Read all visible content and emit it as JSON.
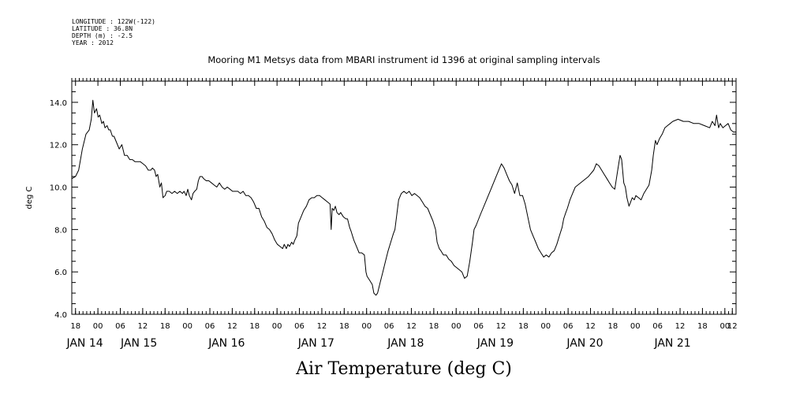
{
  "header": {
    "lines": [
      "LONGITUDE : 122W(-122)",
      "LATITUDE : 36.8N",
      "DEPTH (m) : -2.5",
      "YEAR : 2012"
    ]
  },
  "chart_data": {
    "type": "line",
    "title": "Mooring M1 Metsys data from MBARI instrument id 1396 at original sampling intervals",
    "xlabel": "Air Temperature (deg C)",
    "ylabel": "deg C",
    "ylim": [
      4.0,
      15.0
    ],
    "yticks": [
      4.0,
      6.0,
      8.0,
      10.0,
      12.0,
      14.0
    ],
    "ytick_labels": [
      "4.0",
      "6.0",
      "8.0",
      "10.0",
      "12.0",
      "14.0"
    ],
    "x_unit": "hours since 2012-01-13 17:00",
    "xlim": [
      0,
      178
    ],
    "hour_ticks": [
      {
        "x": 1,
        "label": "18"
      },
      {
        "x": 7,
        "label": "00"
      },
      {
        "x": 13,
        "label": "06"
      },
      {
        "x": 19,
        "label": "12"
      },
      {
        "x": 25,
        "label": "18"
      },
      {
        "x": 31,
        "label": "00"
      },
      {
        "x": 37,
        "label": "06"
      },
      {
        "x": 43,
        "label": "12"
      },
      {
        "x": 49,
        "label": "18"
      },
      {
        "x": 55,
        "label": "00"
      },
      {
        "x": 61,
        "label": "06"
      },
      {
        "x": 67,
        "label": "12"
      },
      {
        "x": 73,
        "label": "18"
      },
      {
        "x": 79,
        "label": "00"
      },
      {
        "x": 85,
        "label": "06"
      },
      {
        "x": 91,
        "label": "12"
      },
      {
        "x": 97,
        "label": "18"
      },
      {
        "x": 103,
        "label": "00"
      },
      {
        "x": 109,
        "label": "06"
      },
      {
        "x": 115,
        "label": "12"
      },
      {
        "x": 121,
        "label": "18"
      },
      {
        "x": 127,
        "label": "00"
      },
      {
        "x": 133,
        "label": "06"
      },
      {
        "x": 139,
        "label": "12"
      },
      {
        "x": 145,
        "label": "18"
      },
      {
        "x": 151,
        "label": "00"
      },
      {
        "x": 157,
        "label": "06"
      },
      {
        "x": 163,
        "label": "12"
      },
      {
        "x": 169,
        "label": "18"
      },
      {
        "x": 175,
        "label": "00"
      }
    ],
    "day_labels": [
      {
        "x": 3.5,
        "label": "JAN 14"
      },
      {
        "x": 18,
        "label": "JAN 15"
      },
      {
        "x": 41.5,
        "label": "JAN 16"
      },
      {
        "x": 65.5,
        "label": "JAN 17"
      },
      {
        "x": 89.5,
        "label": "JAN 18"
      },
      {
        "x": 113.5,
        "label": "JAN 19"
      },
      {
        "x": 137.5,
        "label": "JAN 20"
      },
      {
        "x": 161,
        "label": "JAN 21"
      }
    ],
    "end_tick": {
      "x": 177,
      "label": "12"
    },
    "series": [
      {
        "color": "#000000",
        "points": [
          [
            0,
            10.4
          ],
          [
            0.7,
            10.5
          ],
          [
            1.3,
            10.8
          ],
          [
            2,
            11.8
          ],
          [
            2.7,
            12.5
          ],
          [
            3.3,
            12.7
          ],
          [
            3.7,
            13.2
          ],
          [
            4,
            14.1
          ],
          [
            4.3,
            13.5
          ],
          [
            4.7,
            13.7
          ],
          [
            5,
            13.3
          ],
          [
            5.3,
            13.4
          ],
          [
            5.7,
            13.0
          ],
          [
            6,
            13.1
          ],
          [
            6.3,
            12.8
          ],
          [
            6.7,
            12.9
          ],
          [
            7,
            12.7
          ],
          [
            7.3,
            12.7
          ],
          [
            7.7,
            12.4
          ],
          [
            8,
            12.4
          ],
          [
            8.5,
            12.1
          ],
          [
            9,
            11.8
          ],
          [
            9.5,
            12.0
          ],
          [
            10,
            11.5
          ],
          [
            10.5,
            11.5
          ],
          [
            11,
            11.3
          ],
          [
            11.5,
            11.3
          ],
          [
            12,
            11.2
          ],
          [
            12.5,
            11.2
          ],
          [
            13,
            11.2
          ],
          [
            13.5,
            11.1
          ],
          [
            14,
            11.0
          ],
          [
            14.5,
            10.8
          ],
          [
            15,
            10.8
          ],
          [
            15.3,
            10.9
          ],
          [
            15.7,
            10.8
          ],
          [
            16,
            10.5
          ],
          [
            16.3,
            10.6
          ],
          [
            16.7,
            10.0
          ],
          [
            17,
            10.2
          ],
          [
            17.3,
            9.5
          ],
          [
            17.7,
            9.6
          ],
          [
            18,
            9.8
          ],
          [
            18.5,
            9.8
          ],
          [
            19,
            9.7
          ],
          [
            19.5,
            9.8
          ],
          [
            20,
            9.7
          ],
          [
            20.5,
            9.8
          ],
          [
            21,
            9.7
          ],
          [
            21.3,
            9.8
          ],
          [
            21.7,
            9.6
          ],
          [
            22,
            9.9
          ],
          [
            22.3,
            9.6
          ],
          [
            22.7,
            9.4
          ],
          [
            23,
            9.7
          ],
          [
            23.3,
            9.8
          ],
          [
            23.7,
            9.9
          ],
          [
            24,
            10.3
          ],
          [
            24.3,
            10.5
          ],
          [
            24.7,
            10.5
          ],
          [
            25,
            10.4
          ],
          [
            25.5,
            10.3
          ],
          [
            26,
            10.3
          ],
          [
            26.5,
            10.2
          ],
          [
            27,
            10.1
          ],
          [
            27.5,
            10.0
          ],
          [
            28,
            10.2
          ],
          [
            28.5,
            10.0
          ],
          [
            29,
            9.9
          ],
          [
            29.5,
            10.0
          ],
          [
            30,
            9.9
          ],
          [
            30.5,
            9.8
          ],
          [
            31,
            9.8
          ],
          [
            31.5,
            9.8
          ],
          [
            32,
            9.7
          ],
          [
            32.5,
            9.8
          ],
          [
            33,
            9.6
          ],
          [
            33.5,
            9.6
          ],
          [
            34,
            9.5
          ],
          [
            34.5,
            9.3
          ],
          [
            35,
            9.0
          ],
          [
            35.5,
            9.0
          ],
          [
            36,
            8.6
          ],
          [
            36.5,
            8.4
          ],
          [
            37,
            8.1
          ],
          [
            37.5,
            8.0
          ],
          [
            38,
            7.8
          ],
          [
            38.5,
            7.5
          ],
          [
            39,
            7.3
          ],
          [
            39.5,
            7.2
          ],
          [
            40,
            7.1
          ],
          [
            40.3,
            7.3
          ],
          [
            40.7,
            7.1
          ],
          [
            41,
            7.3
          ],
          [
            41.3,
            7.2
          ],
          [
            41.7,
            7.4
          ],
          [
            42,
            7.3
          ],
          [
            42.3,
            7.5
          ],
          [
            42.7,
            7.7
          ],
          [
            43,
            8.3
          ],
          [
            43.5,
            8.6
          ],
          [
            44,
            8.9
          ],
          [
            44.5,
            9.1
          ],
          [
            45,
            9.4
          ],
          [
            45.5,
            9.5
          ],
          [
            46,
            9.5
          ],
          [
            46.5,
            9.6
          ],
          [
            47,
            9.6
          ],
          [
            47.5,
            9.5
          ],
          [
            48,
            9.4
          ],
          [
            48.5,
            9.3
          ],
          [
            49,
            9.2
          ],
          [
            49.2,
            8.0
          ],
          [
            49.4,
            9.0
          ],
          [
            49.7,
            8.9
          ],
          [
            50,
            9.1
          ],
          [
            50.3,
            8.8
          ],
          [
            50.7,
            8.7
          ],
          [
            51,
            8.8
          ],
          [
            51.5,
            8.6
          ],
          [
            52,
            8.5
          ],
          [
            52.3,
            8.5
          ],
          [
            52.7,
            8.1
          ],
          [
            53,
            7.9
          ],
          [
            53.5,
            7.5
          ],
          [
            54,
            7.2
          ],
          [
            54.5,
            6.9
          ],
          [
            55,
            6.9
          ],
          [
            55.5,
            6.8
          ],
          [
            55.8,
            6.0
          ],
          [
            56,
            5.8
          ],
          [
            56.5,
            5.6
          ],
          [
            57,
            5.4
          ],
          [
            57.3,
            5.0
          ],
          [
            57.7,
            4.9
          ],
          [
            58,
            5.0
          ],
          [
            58.5,
            5.5
          ],
          [
            59,
            6.0
          ],
          [
            59.5,
            6.5
          ],
          [
            60,
            7.0
          ],
          [
            60.5,
            7.4
          ],
          [
            61,
            7.8
          ],
          [
            61.3,
            8.0
          ],
          [
            61.7,
            8.8
          ],
          [
            62,
            9.4
          ],
          [
            62.5,
            9.7
          ],
          [
            63,
            9.8
          ],
          [
            63.5,
            9.7
          ],
          [
            64,
            9.8
          ],
          [
            64.5,
            9.6
          ],
          [
            65,
            9.7
          ],
          [
            65.5,
            9.6
          ],
          [
            66,
            9.5
          ],
          [
            66.5,
            9.3
          ],
          [
            67,
            9.1
          ],
          [
            67.5,
            9.0
          ],
          [
            68,
            8.7
          ],
          [
            68.5,
            8.4
          ],
          [
            69,
            8.0
          ],
          [
            69.3,
            7.4
          ],
          [
            69.7,
            7.1
          ],
          [
            70,
            7.0
          ],
          [
            70.5,
            6.8
          ],
          [
            71,
            6.8
          ],
          [
            71.5,
            6.6
          ],
          [
            72,
            6.5
          ],
          [
            72.5,
            6.3
          ],
          [
            73,
            6.2
          ],
          [
            73.5,
            6.1
          ],
          [
            74,
            6.0
          ],
          [
            74.5,
            5.7
          ],
          [
            75,
            5.8
          ],
          [
            75.5,
            6.5
          ],
          [
            76,
            7.4
          ],
          [
            76.3,
            8.0
          ],
          [
            76.7,
            8.2
          ],
          [
            77.5,
            8.7
          ],
          [
            78.5,
            9.3
          ],
          [
            79.5,
            9.9
          ],
          [
            80.5,
            10.5
          ],
          [
            81.5,
            11.1
          ],
          [
            82,
            10.9
          ],
          [
            82.5,
            10.6
          ],
          [
            83,
            10.3
          ],
          [
            83.5,
            10.1
          ],
          [
            84,
            9.7
          ],
          [
            84.5,
            10.2
          ],
          [
            85,
            9.6
          ],
          [
            85.5,
            9.6
          ],
          [
            86,
            9.2
          ],
          [
            86.5,
            8.6
          ],
          [
            87,
            8.0
          ],
          [
            87.5,
            7.7
          ],
          [
            88,
            7.4
          ],
          [
            88.5,
            7.1
          ],
          [
            89,
            6.9
          ],
          [
            89.5,
            6.7
          ],
          [
            90,
            6.8
          ],
          [
            90.5,
            6.7
          ],
          [
            91,
            6.9
          ],
          [
            91.5,
            7.0
          ],
          [
            92,
            7.3
          ],
          [
            92.5,
            7.7
          ],
          [
            93,
            8.1
          ],
          [
            93.3,
            8.5
          ],
          [
            93.7,
            8.8
          ],
          [
            94,
            9.0
          ],
          [
            94.5,
            9.4
          ],
          [
            95,
            9.7
          ],
          [
            95.5,
            10.0
          ],
          [
            96,
            10.1
          ],
          [
            97,
            10.3
          ],
          [
            98,
            10.5
          ],
          [
            99,
            10.8
          ],
          [
            99.5,
            11.1
          ],
          [
            100,
            11.0
          ],
          [
            100.5,
            10.8
          ],
          [
            101,
            10.6
          ],
          [
            101.5,
            10.4
          ],
          [
            102,
            10.2
          ],
          [
            102.5,
            10.0
          ],
          [
            103,
            9.9
          ],
          [
            103.5,
            10.7
          ],
          [
            104,
            11.5
          ],
          [
            104.3,
            11.3
          ],
          [
            104.7,
            10.2
          ],
          [
            105,
            10.0
          ],
          [
            105.3,
            9.5
          ],
          [
            105.7,
            9.1
          ],
          [
            106,
            9.3
          ],
          [
            106.3,
            9.5
          ],
          [
            106.7,
            9.4
          ],
          [
            107,
            9.6
          ],
          [
            107.5,
            9.5
          ],
          [
            108,
            9.4
          ],
          [
            108.5,
            9.7
          ],
          [
            109,
            9.9
          ],
          [
            109.5,
            10.1
          ],
          [
            110,
            10.8
          ],
          [
            110.3,
            11.5
          ],
          [
            110.7,
            12.2
          ],
          [
            111,
            12.0
          ],
          [
            111.5,
            12.3
          ],
          [
            112,
            12.5
          ],
          [
            112.5,
            12.8
          ],
          [
            113,
            12.9
          ],
          [
            113.5,
            13.0
          ],
          [
            114,
            13.1
          ],
          [
            115,
            13.2
          ],
          [
            116,
            13.1
          ],
          [
            117,
            13.1
          ],
          [
            118,
            13.0
          ],
          [
            119,
            13.0
          ],
          [
            120,
            12.9
          ],
          [
            121,
            12.8
          ],
          [
            121.5,
            13.1
          ],
          [
            122,
            12.9
          ],
          [
            122.3,
            13.4
          ],
          [
            122.7,
            12.8
          ],
          [
            123,
            13.0
          ],
          [
            123.5,
            12.8
          ],
          [
            124,
            12.9
          ],
          [
            124.5,
            13.0
          ],
          [
            125,
            12.7
          ],
          [
            125.5,
            12.6
          ],
          [
            126,
            12.6
          ]
        ],
        "x_scale": 1.4127
      }
    ]
  }
}
